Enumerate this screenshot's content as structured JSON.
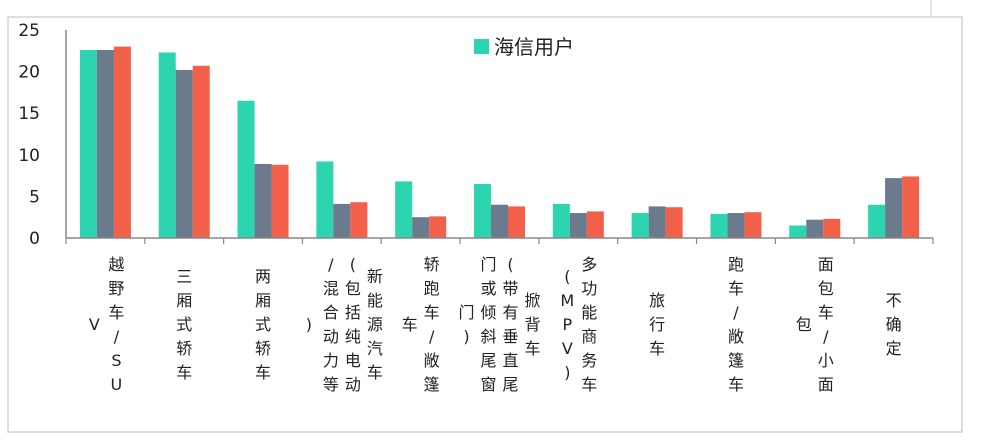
{
  "chart_data": {
    "type": "bar",
    "ylim": [
      0,
      25
    ],
    "yticks": [
      0,
      5,
      10,
      15,
      20,
      25
    ],
    "categories": [
      "越野车/SUV",
      "三厢式轿车",
      "两厢式轿车",
      "新能源汽车(包括纯电动/混合动力等)",
      "轿跑车/敞篷车",
      "掀背车(带有垂直尾门或倾斜尾窗门)",
      "多功能商务车(MPV)",
      "旅行车",
      "跑车/敞篷车",
      "面包车/小面包",
      "不确定"
    ],
    "category_lines": [
      [
        "越野车/SU",
        "V"
      ],
      [
        "三厢式轿车"
      ],
      [
        "两厢式轿车"
      ],
      [
        "新能源汽车",
        "(包括纯电动",
        "/混合动力等",
        ")"
      ],
      [
        "轿跑车/敞篷",
        "车"
      ],
      [
        "掀背车",
        "(带有垂直尾",
        "门或倾斜尾窗",
        "门)"
      ],
      [
        "多功能商务车",
        "(MPV)"
      ],
      [
        "旅行车"
      ],
      [
        "跑车/敞篷车"
      ],
      [
        "面包车/小面",
        "包"
      ],
      [
        "不确定"
      ]
    ],
    "series": [
      {
        "name": "海信用户",
        "color": "#2dd4b0",
        "values": [
          22.6,
          22.3,
          16.5,
          9.2,
          6.8,
          6.5,
          4.1,
          3.0,
          2.9,
          1.5,
          4.0
        ]
      },
      {
        "name": "",
        "color": "#6b7a8c",
        "values": [
          22.6,
          20.2,
          8.9,
          4.1,
          2.5,
          4.0,
          3.0,
          3.8,
          3.0,
          2.2,
          7.2
        ]
      },
      {
        "name": "",
        "color": "#f2604a",
        "values": [
          23.0,
          20.7,
          8.8,
          4.3,
          2.6,
          3.8,
          3.2,
          3.7,
          3.1,
          2.3,
          7.4
        ]
      }
    ],
    "legend": {
      "position": "top-center",
      "label": "海信用户",
      "color": "#2dd4b0"
    },
    "grid": false
  }
}
